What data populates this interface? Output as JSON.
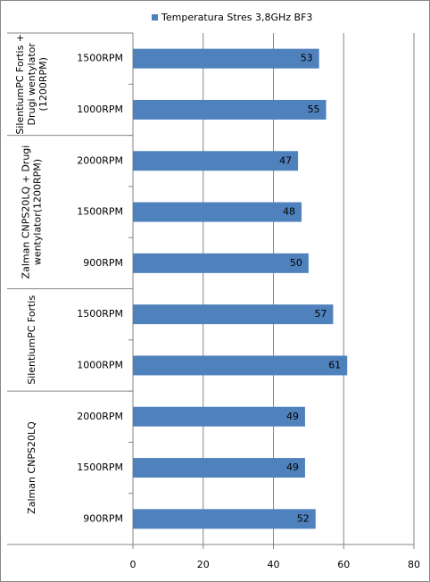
{
  "chart_data": {
    "type": "bar",
    "orientation": "horizontal",
    "series": [
      {
        "name": "Temperatura Stres 3,8GHz BF3",
        "color": "#4f81bd",
        "values": [
          53,
          55,
          47,
          48,
          50,
          57,
          61,
          49,
          49,
          52
        ]
      }
    ],
    "groups": [
      {
        "label": [
          "SilentiumPC Fortis +",
          "Drugi wentylator",
          "(1200RPM)"
        ],
        "categories": [
          "1500RPM",
          "1000RPM"
        ]
      },
      {
        "label": [
          "Zalman CNPS20LQ + Drugi",
          "wentylator(1200RPM)"
        ],
        "categories": [
          "2000RPM",
          "1500RPM",
          "900RPM"
        ]
      },
      {
        "label": [
          "SilentiumPC Fortis"
        ],
        "categories": [
          "1500RPM",
          "1000RPM"
        ]
      },
      {
        "label": [
          "Zalman CNPS20LQ"
        ],
        "categories": [
          "2000RPM",
          "1500RPM",
          "900RPM"
        ]
      }
    ],
    "xlim": [
      0,
      80
    ],
    "xticks": [
      0,
      20,
      40,
      60,
      80
    ],
    "grid": true,
    "legend": "top"
  }
}
